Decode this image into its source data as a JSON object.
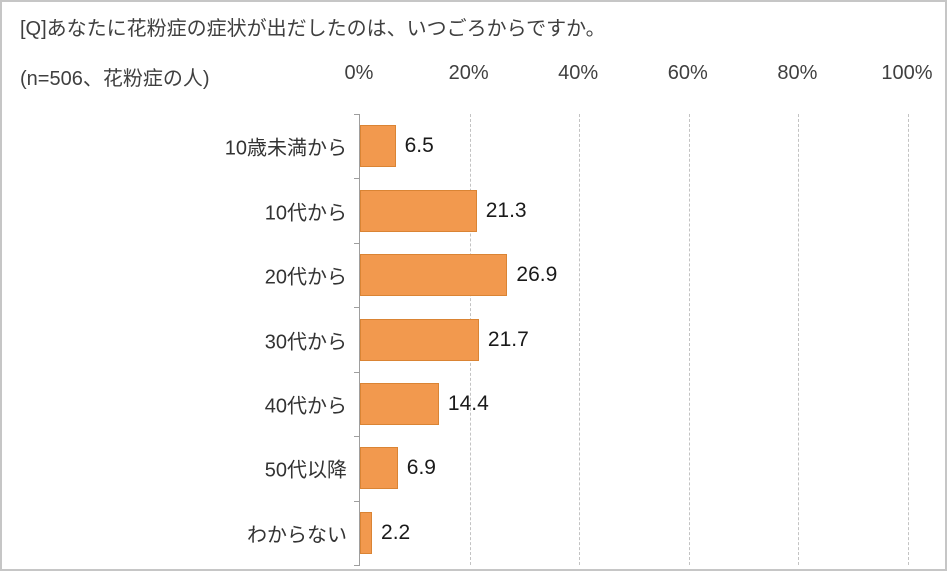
{
  "title": "[Q]あなたに花粉症の症状が出だしたのは、いつごろからですか。",
  "subtitle": "(n=506、花粉症の人)",
  "colors": {
    "bar_fill": "#f2994e",
    "bar_border": "#da8434",
    "axis": "#9e9e9e",
    "grid": "#c3c3c3",
    "text": "#3f3f3f"
  },
  "chart_data": {
    "type": "bar",
    "orientation": "horizontal",
    "title": "[Q]あなたに花粉症の症状が出だしたのは、いつごろからですか。",
    "subtitle": "(n=506、花粉症の人)",
    "categories": [
      "10歳未満から",
      "10代から",
      "20代から",
      "30代から",
      "40代から",
      "50代以降",
      "わからない"
    ],
    "values": [
      6.5,
      21.3,
      26.9,
      21.7,
      14.4,
      6.9,
      2.2
    ],
    "value_labels": [
      "6.5",
      "21.3",
      "26.9",
      "21.7",
      "14.4",
      "6.9",
      "2.2"
    ],
    "x_ticks": [
      "0%",
      "20%",
      "40%",
      "60%",
      "80%",
      "100%"
    ],
    "xlim": [
      0,
      100
    ],
    "grid": "dashed-vertical",
    "legend": "none"
  }
}
